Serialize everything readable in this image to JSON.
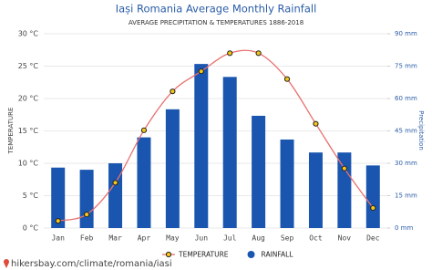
{
  "chart_data": {
    "type": "combo",
    "title": "Iași Romania Average Monthly Rainfall",
    "subtitle": "AVERAGE PRECIPITATION & TEMPERATURES 1886-2018",
    "y_label": "TEMPERATURE",
    "y2_label": "Precipitation",
    "source": "hikersbay.com/climate/romania/iasi",
    "categories": [
      "Jan",
      "Feb",
      "Mar",
      "Apr",
      "May",
      "Jun",
      "Jul",
      "Aug",
      "Sep",
      "Oct",
      "Nov",
      "Dec"
    ],
    "series": [
      {
        "name": "TEMPERATURE",
        "type": "line",
        "color": "#e8706e",
        "marker_color": "#f5c518",
        "values": [
          1.1,
          2.1,
          7.0,
          15.1,
          21.1,
          24.2,
          27.0,
          27.0,
          23.0,
          16.1,
          9.2,
          3.1
        ]
      },
      {
        "name": "RAINFALL",
        "type": "bar",
        "axis": "y2",
        "color": "#1a56b0",
        "values": [
          28,
          27,
          30,
          42,
          55,
          76,
          70,
          52,
          41,
          35,
          35,
          29
        ]
      }
    ],
    "ylim": [
      0,
      30
    ],
    "yticks": [
      {
        "value": 0,
        "label": "0 °C"
      },
      {
        "value": 5,
        "label": "5 °C"
      },
      {
        "value": 10,
        "label": "10 °C"
      },
      {
        "value": 15,
        "label": "15 °C"
      },
      {
        "value": 20,
        "label": "20 °C"
      },
      {
        "value": 25,
        "label": "25 °C"
      },
      {
        "value": 30,
        "label": "30 °C"
      }
    ],
    "y2lim": [
      0,
      90
    ],
    "y2ticks": [
      {
        "value": 0,
        "label": "0 mm"
      },
      {
        "value": 15,
        "label": "15 mm"
      },
      {
        "value": 30,
        "label": "30 mm"
      },
      {
        "value": 45,
        "label": "45 mm"
      },
      {
        "value": 60,
        "label": "60 mm"
      },
      {
        "value": 75,
        "label": "75 mm"
      },
      {
        "value": 90,
        "label": "90 mm"
      }
    ],
    "grid": true
  }
}
